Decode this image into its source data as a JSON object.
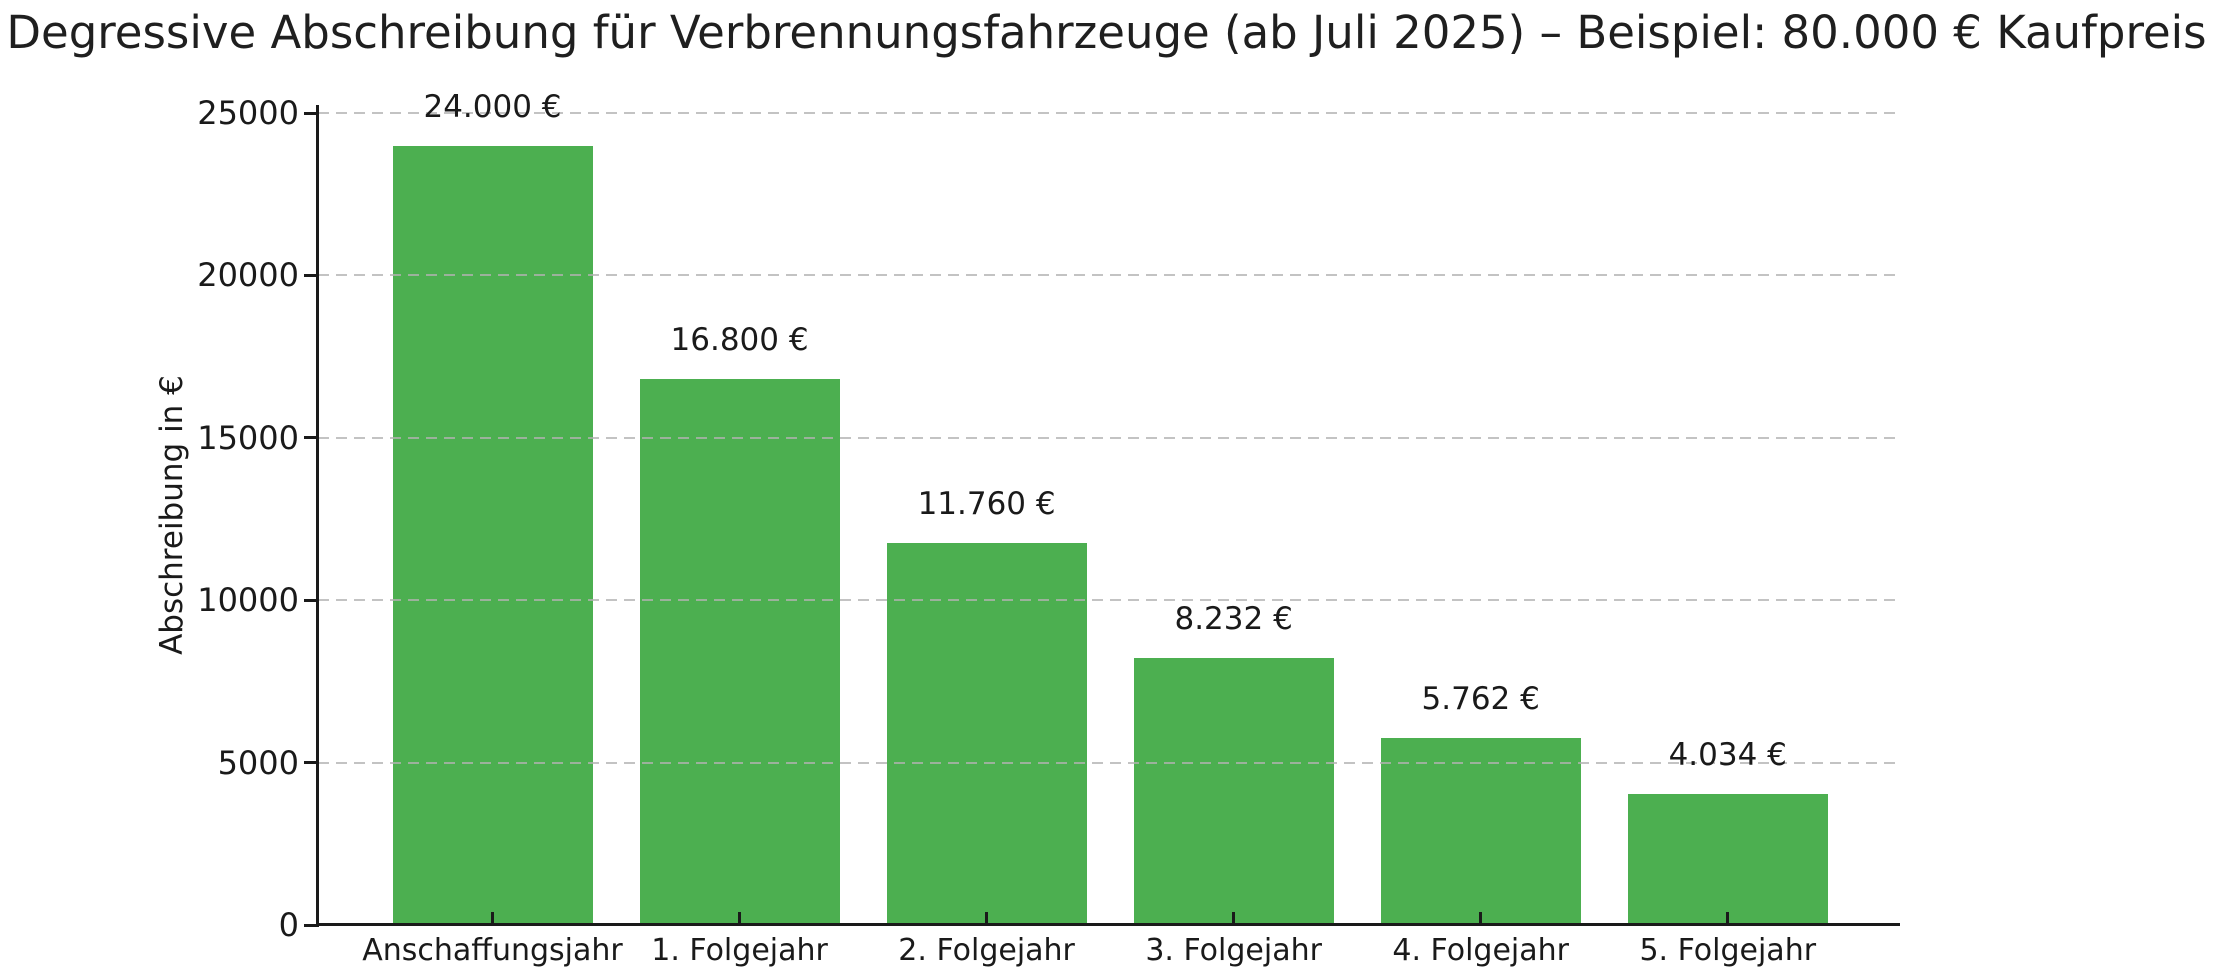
{
  "chart_data": {
    "type": "bar",
    "title": "Degressive Abschreibung für Verbrennungsfahrzeuge (ab Juli 2025) – Beispiel: 80.000 € Kaufpreis",
    "xlabel": "",
    "ylabel": "Abschreibung in €",
    "categories": [
      "Anschaffungsjahr",
      "1. Folgejahr",
      "2. Folgejahr",
      "3. Folgejahr",
      "4. Folgejahr",
      "5. Folgejahr"
    ],
    "values": [
      24000,
      16800,
      11760,
      8232,
      5762,
      4034
    ],
    "bar_labels": [
      "24.000 €",
      "16.800 €",
      "11.760 €",
      "8.232 €",
      "5.762 €",
      "4.034 €"
    ],
    "yticks": [
      0,
      5000,
      10000,
      15000,
      20000,
      25000
    ],
    "ytick_labels": [
      "0",
      "5000",
      "10000",
      "15000",
      "20000",
      "25000"
    ],
    "ylim": [
      0,
      25250
    ],
    "grid": "horizontal-dashed",
    "legend": "none",
    "bar_color": "#4caf50"
  },
  "colors": {
    "bar": "#4caf50",
    "grid": "#c8c8c8",
    "axis": "#1a1a1a",
    "text": "#1a1a1a",
    "background": "#ffffff"
  }
}
